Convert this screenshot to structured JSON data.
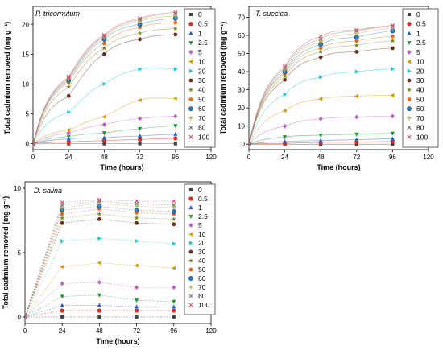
{
  "chart_data": [
    {
      "type": "scatter",
      "title": "P. tricornutum",
      "xlabel": "Time (hours)",
      "ylabel": "Total cadmium removed (mg g⁻¹)",
      "xlim": [
        0,
        120
      ],
      "ylim": [
        -1,
        23
      ],
      "xticks": [
        0,
        24,
        48,
        72,
        96,
        120
      ],
      "yticks": [
        0,
        5,
        10,
        15,
        20
      ],
      "x": [
        0,
        24,
        48,
        72,
        96
      ],
      "fit_lines": true,
      "legend_position": "right",
      "series": [
        {
          "name": "0",
          "values": [
            0,
            0,
            0,
            0,
            0
          ]
        },
        {
          "name": "0.5",
          "values": [
            0,
            0.3,
            0.5,
            0.7,
            0.9
          ]
        },
        {
          "name": "1",
          "values": [
            0,
            0.8,
            1.0,
            1.3,
            1.6
          ]
        },
        {
          "name": "2.5",
          "values": [
            0,
            1.2,
            1.8,
            2.5,
            3.0
          ]
        },
        {
          "name": "5",
          "values": [
            0,
            1.8,
            3.2,
            4.2,
            4.6
          ]
        },
        {
          "name": "10",
          "values": [
            0,
            2.3,
            4.5,
            7.3,
            7.6
          ]
        },
        {
          "name": "20",
          "values": [
            0,
            5.3,
            10.0,
            12.5,
            12.5
          ]
        },
        {
          "name": "30",
          "values": [
            0,
            8.0,
            15.0,
            17.5,
            18.3
          ]
        },
        {
          "name": "40",
          "values": [
            0,
            9.5,
            16.0,
            18.5,
            19.3
          ]
        },
        {
          "name": "50",
          "values": [
            0,
            10.3,
            16.8,
            19.5,
            20.3
          ]
        },
        {
          "name": "60",
          "values": [
            0,
            10.6,
            17.5,
            20.0,
            21.0
          ]
        },
        {
          "name": "70",
          "values": [
            0,
            10.8,
            17.8,
            20.5,
            21.4
          ]
        },
        {
          "name": "80",
          "values": [
            0,
            11.0,
            18.0,
            20.8,
            21.8
          ]
        },
        {
          "name": "100",
          "values": [
            0,
            11.2,
            18.2,
            21.0,
            22.0
          ]
        }
      ]
    },
    {
      "type": "scatter",
      "title": "T. suecica",
      "xlabel": "Time (hours)",
      "ylabel": "Total cadmium removed (mg g⁻¹)",
      "xlim": [
        0,
        120
      ],
      "ylim": [
        -3,
        76
      ],
      "xticks": [
        0,
        24,
        48,
        72,
        96,
        120
      ],
      "yticks": [
        0,
        10,
        20,
        30,
        40,
        50,
        60,
        70
      ],
      "x": [
        0,
        24,
        48,
        72,
        96
      ],
      "fit_lines": true,
      "legend_position": "right",
      "series": [
        {
          "name": "0",
          "values": [
            0,
            0,
            0,
            0,
            0
          ]
        },
        {
          "name": "0.5",
          "values": [
            0,
            0.5,
            1.0,
            1.2,
            1.5
          ]
        },
        {
          "name": "1",
          "values": [
            0,
            1.5,
            2.0,
            2.5,
            3.0
          ]
        },
        {
          "name": "2.5",
          "values": [
            0,
            4.0,
            5.0,
            5.5,
            6.0
          ]
        },
        {
          "name": "5",
          "values": [
            0,
            10.0,
            14.0,
            15.0,
            15.5
          ]
        },
        {
          "name": "10",
          "values": [
            0,
            18.5,
            25.0,
            26.5,
            27.0
          ]
        },
        {
          "name": "20",
          "values": [
            0,
            27.5,
            37.0,
            40.0,
            41.5
          ]
        },
        {
          "name": "30",
          "values": [
            0,
            35.5,
            48.0,
            51.0,
            53.0
          ]
        },
        {
          "name": "40",
          "values": [
            0,
            37.5,
            51.0,
            54.5,
            57.0
          ]
        },
        {
          "name": "50",
          "values": [
            0,
            39.0,
            53.0,
            57.0,
            59.5
          ]
        },
        {
          "name": "60",
          "values": [
            0,
            40.0,
            55.0,
            59.0,
            62.5
          ]
        },
        {
          "name": "70",
          "values": [
            0,
            41.0,
            56.5,
            61.0,
            64.0
          ]
        },
        {
          "name": "80",
          "values": [
            0,
            42.0,
            58.0,
            62.5,
            65.0
          ]
        },
        {
          "name": "100",
          "values": [
            0,
            43.0,
            59.5,
            63.0,
            65.5
          ]
        }
      ]
    },
    {
      "type": "scatter",
      "title": "D. salina",
      "xlabel": "Time (hours)",
      "ylabel": "Total cadmium removed (mg g⁻¹)",
      "xlim": [
        0,
        120
      ],
      "ylim": [
        -0.5,
        10.5
      ],
      "xticks": [
        0,
        24,
        48,
        72,
        96,
        120
      ],
      "yticks": [
        0,
        5,
        10
      ],
      "x": [
        0,
        24,
        48,
        72,
        96
      ],
      "fit_lines": false,
      "legend_position": "right",
      "series": [
        {
          "name": "0",
          "values": [
            0,
            0,
            0,
            0,
            0
          ]
        },
        {
          "name": "0.5",
          "values": [
            0,
            0.5,
            0.5,
            0.5,
            0.5
          ]
        },
        {
          "name": "1",
          "values": [
            0,
            0.9,
            0.9,
            0.8,
            0.8
          ]
        },
        {
          "name": "2.5",
          "values": [
            0,
            1.6,
            1.7,
            1.3,
            1.2
          ]
        },
        {
          "name": "5",
          "values": [
            0,
            2.6,
            2.7,
            2.3,
            2.3
          ]
        },
        {
          "name": "10",
          "values": [
            0,
            3.9,
            4.2,
            4.0,
            3.8
          ]
        },
        {
          "name": "20",
          "values": [
            0,
            5.9,
            6.1,
            5.9,
            5.7
          ]
        },
        {
          "name": "30",
          "values": [
            0,
            7.3,
            7.6,
            7.3,
            7.2
          ]
        },
        {
          "name": "40",
          "values": [
            0,
            7.7,
            8.0,
            7.7,
            7.6
          ]
        },
        {
          "name": "50",
          "values": [
            0,
            8.0,
            8.4,
            8.1,
            8.0
          ]
        },
        {
          "name": "60",
          "values": [
            0,
            8.3,
            8.6,
            8.3,
            8.2
          ]
        },
        {
          "name": "70",
          "values": [
            0,
            8.5,
            8.8,
            8.6,
            8.5
          ]
        },
        {
          "name": "80",
          "values": [
            0,
            8.7,
            9.0,
            8.8,
            8.7
          ]
        },
        {
          "name": "100",
          "values": [
            0,
            8.9,
            9.1,
            9.0,
            9.0
          ]
        }
      ]
    }
  ],
  "series_styles": [
    {
      "color": "#444444",
      "marker": "square"
    },
    {
      "color": "#e8231b",
      "marker": "circle"
    },
    {
      "color": "#1f5fc8",
      "marker": "triangle-up"
    },
    {
      "color": "#1a9a3c",
      "marker": "triangle-down"
    },
    {
      "color": "#c45ad6",
      "marker": "diamond"
    },
    {
      "color": "#e39400",
      "marker": "triangle-left"
    },
    {
      "color": "#1fc6e0",
      "marker": "triangle-right"
    },
    {
      "color": "#6e2e1e",
      "marker": "hexagon"
    },
    {
      "color": "#7a8b16",
      "marker": "star"
    },
    {
      "color": "#e86a1a",
      "marker": "pentagon"
    },
    {
      "color": "#2a7fc0",
      "marker": "sphere"
    },
    {
      "color": "#b0b040",
      "marker": "plus"
    },
    {
      "color": "#777777",
      "marker": "x"
    },
    {
      "color": "#e0506a",
      "marker": "x"
    }
  ]
}
